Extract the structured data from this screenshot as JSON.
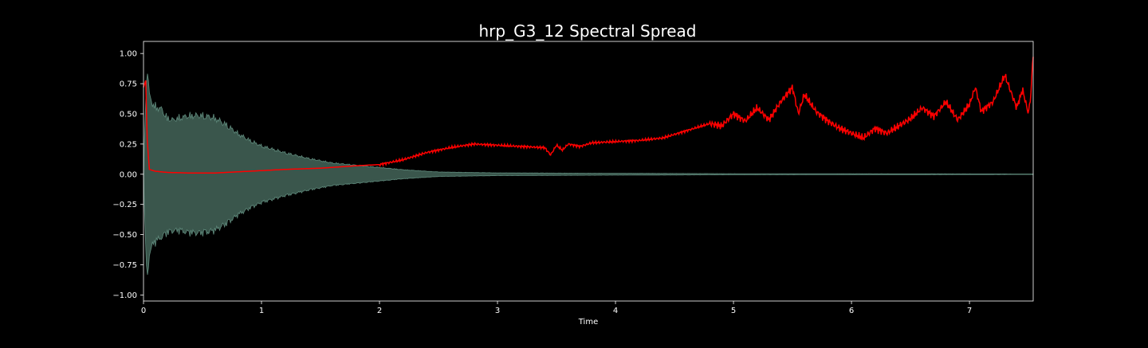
{
  "chart_data": {
    "type": "line",
    "title": "hrp_G3_12 Spectral Spread",
    "xlabel": "Time",
    "ylabel": "",
    "xlim": [
      0,
      7.54
    ],
    "ylim": [
      -1.05,
      1.1
    ],
    "x_ticks": [
      0,
      1,
      2,
      3,
      4,
      5,
      6,
      7
    ],
    "y_ticks": [
      -1.0,
      -0.75,
      -0.5,
      -0.25,
      0.0,
      0.25,
      0.5,
      0.75,
      1.0
    ],
    "x_tick_labels": [
      "0",
      "1",
      "2",
      "3",
      "4",
      "5",
      "6",
      "7"
    ],
    "y_tick_labels": [
      "−1.00",
      "−0.75",
      "−0.50",
      "−0.25",
      "0.00",
      "0.25",
      "0.50",
      "0.75",
      "1.00"
    ],
    "grid": false,
    "colors": {
      "background": "#000000",
      "axes": "#ffffff",
      "waveform_fill": "#3a564c",
      "waveform_edge": "#5f8a7c",
      "spread_line": "#ff0000"
    },
    "series": [
      {
        "kind": "waveform-envelope",
        "x": [
          0.0,
          0.01,
          0.02,
          0.03,
          0.05,
          0.08,
          0.1,
          0.15,
          0.2,
          0.25,
          0.3,
          0.4,
          0.5,
          0.6,
          0.7,
          0.8,
          0.9,
          1.0,
          1.2,
          1.4,
          1.6,
          1.8,
          2.0,
          2.2,
          2.5,
          3.0,
          3.5,
          4.0,
          5.0,
          6.0,
          7.0,
          7.54
        ],
        "upper": [
          0.0,
          0.35,
          0.75,
          0.96,
          0.7,
          0.62,
          0.6,
          0.58,
          0.5,
          0.48,
          0.5,
          0.52,
          0.52,
          0.5,
          0.44,
          0.36,
          0.3,
          0.25,
          0.19,
          0.14,
          0.1,
          0.08,
          0.06,
          0.04,
          0.02,
          0.012,
          0.01,
          0.008,
          0.005,
          0.004,
          0.003,
          0.002
        ],
        "lower": [
          0.0,
          -0.35,
          -0.75,
          -0.96,
          -0.7,
          -0.62,
          -0.6,
          -0.56,
          -0.52,
          -0.5,
          -0.5,
          -0.52,
          -0.52,
          -0.5,
          -0.44,
          -0.36,
          -0.3,
          -0.25,
          -0.19,
          -0.14,
          -0.1,
          -0.08,
          -0.06,
          -0.04,
          -0.02,
          -0.012,
          -0.01,
          -0.008,
          -0.005,
          -0.004,
          -0.003,
          -0.002
        ]
      },
      {
        "kind": "spectral-spread",
        "x": [
          0.0,
          0.02,
          0.03,
          0.05,
          0.1,
          0.2,
          0.4,
          0.6,
          0.8,
          1.0,
          1.2,
          1.5,
          1.8,
          2.0,
          2.2,
          2.4,
          2.6,
          2.8,
          3.0,
          3.2,
          3.4,
          3.45,
          3.5,
          3.55,
          3.6,
          3.7,
          3.8,
          4.0,
          4.2,
          4.4,
          4.6,
          4.8,
          4.9,
          5.0,
          5.1,
          5.2,
          5.3,
          5.4,
          5.5,
          5.55,
          5.6,
          5.7,
          5.8,
          5.9,
          6.0,
          6.1,
          6.2,
          6.3,
          6.4,
          6.5,
          6.6,
          6.7,
          6.8,
          6.9,
          7.0,
          7.05,
          7.1,
          7.2,
          7.3,
          7.4,
          7.45,
          7.5,
          7.52,
          7.54
        ],
        "y": [
          0.72,
          0.78,
          0.3,
          0.04,
          0.025,
          0.015,
          0.01,
          0.01,
          0.02,
          0.03,
          0.04,
          0.05,
          0.07,
          0.08,
          0.12,
          0.18,
          0.22,
          0.25,
          0.24,
          0.23,
          0.22,
          0.16,
          0.24,
          0.2,
          0.25,
          0.23,
          0.26,
          0.27,
          0.28,
          0.3,
          0.36,
          0.42,
          0.4,
          0.5,
          0.44,
          0.55,
          0.45,
          0.6,
          0.72,
          0.5,
          0.66,
          0.52,
          0.44,
          0.38,
          0.34,
          0.3,
          0.38,
          0.34,
          0.4,
          0.46,
          0.55,
          0.48,
          0.6,
          0.45,
          0.58,
          0.72,
          0.52,
          0.6,
          0.82,
          0.55,
          0.7,
          0.5,
          0.66,
          1.0
        ]
      }
    ]
  }
}
